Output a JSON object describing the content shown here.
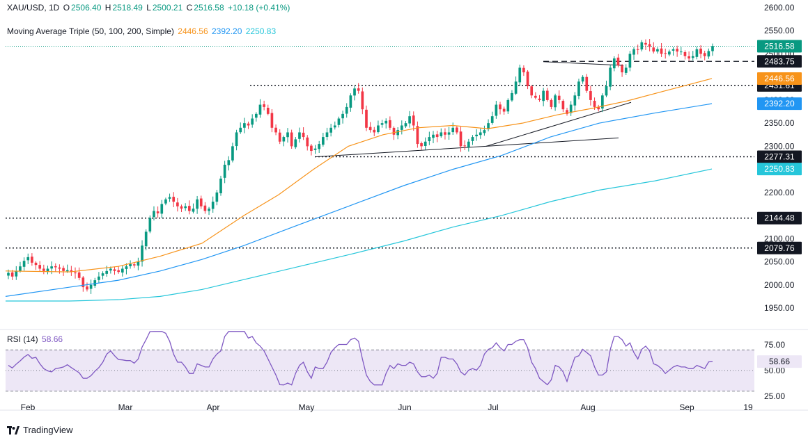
{
  "header": {
    "symbol": "XAU/USD, 1D",
    "o_label": "O",
    "o_value": "2506.40",
    "h_label": "H",
    "h_value": "2518.49",
    "l_label": "L",
    "l_value": "2500.21",
    "c_label": "C",
    "c_value": "2516.58",
    "change": "+10.18 (+0.41%)",
    "ma_title": "Moving Average Triple (50, 100, 200, Simple)",
    "ma50_value": "2446.56",
    "ma100_value": "2392.20",
    "ma200_value": "2250.83"
  },
  "rsi_header": {
    "label": "RSI (14)",
    "value": "58.66"
  },
  "branding": {
    "name": "TradingView"
  },
  "colors": {
    "up": "#089981",
    "down": "#f23645",
    "ma50": "#f7931a",
    "ma100": "#2196f3",
    "ma200": "#26c6da",
    "rsi": "#7e57c2",
    "rsi_band": "#ede7f6"
  },
  "chart_data": [
    {
      "type": "candlestick",
      "symbol": "XAU/USD",
      "timeframe": "1D",
      "y_range": [
        1925,
        2610
      ],
      "y_ticks": [
        "2600.00",
        "2550.00",
        "2500.00",
        "2450.00",
        "2400.00",
        "2350.00",
        "2300.00",
        "2250.00",
        "2200.00",
        "2150.00",
        "2100.00",
        "2050.00",
        "2000.00",
        "1950.00"
      ],
      "x_ticks": [
        "Feb",
        "Mar",
        "Apr",
        "May",
        "Jun",
        "Jul",
        "Aug",
        "Sep",
        "19"
      ],
      "candles": {
        "closes": [
          2026,
          2018,
          2030,
          2040,
          2052,
          2060,
          2048,
          2043,
          2035,
          2030,
          2035,
          2040,
          2038,
          2035,
          2030,
          2032,
          2028,
          2025,
          2015,
          1995,
          1990,
          2000,
          2010,
          2018,
          2025,
          2030,
          2035,
          2030,
          2028,
          2035,
          2040,
          2045,
          2042,
          2050,
          2085,
          2115,
          2145,
          2160,
          2155,
          2175,
          2185,
          2190,
          2180,
          2170,
          2165,
          2170,
          2160,
          2165,
          2185,
          2170,
          2160,
          2165,
          2180,
          2200,
          2230,
          2260,
          2270,
          2300,
          2330,
          2340,
          2350,
          2345,
          2360,
          2370,
          2390,
          2385,
          2370,
          2340,
          2330,
          2310,
          2320,
          2330,
          2300,
          2315,
          2330,
          2320,
          2300,
          2290,
          2295,
          2305,
          2320,
          2330,
          2340,
          2345,
          2360,
          2370,
          2385,
          2410,
          2425,
          2420,
          2380,
          2340,
          2335,
          2330,
          2345,
          2350,
          2355,
          2340,
          2325,
          2335,
          2345,
          2350,
          2365,
          2345,
          2305,
          2300,
          2310,
          2320,
          2325,
          2320,
          2330,
          2325,
          2330,
          2340,
          2330,
          2300,
          2300,
          2310,
          2320,
          2325,
          2330,
          2335,
          2350,
          2365,
          2390,
          2380,
          2375,
          2400,
          2415,
          2440,
          2470,
          2460,
          2430,
          2410,
          2405,
          2400,
          2420,
          2400,
          2385,
          2410,
          2400,
          2380,
          2370,
          2390,
          2410,
          2440,
          2450,
          2420,
          2400,
          2385,
          2380,
          2410,
          2430,
          2470,
          2490,
          2475,
          2460,
          2470,
          2500,
          2510,
          2510,
          2525,
          2520,
          2515,
          2505,
          2510,
          2500,
          2500,
          2505,
          2510,
          2505,
          2505,
          2495,
          2490,
          2495,
          2510,
          2500,
          2495,
          2506,
          2517
        ],
        "last_close": "2516.58"
      },
      "series": [
        {
          "name": "50",
          "last_value": "2446.56"
        },
        {
          "name": "100",
          "last_value": "2392.20"
        },
        {
          "name": "200",
          "last_value": "2250.83"
        }
      ],
      "levels": [
        {
          "value": "2483.75",
          "style": "dashed"
        },
        {
          "value": "2431.61",
          "style": "dotted"
        },
        {
          "value": "2277.31",
          "style": "dotted"
        },
        {
          "value": "2144.48",
          "style": "dotted"
        },
        {
          "value": "2079.76",
          "style": "dotted"
        }
      ]
    },
    {
      "type": "line",
      "y_range": [
        22,
        85
      ],
      "y_ticks": [
        "75.00",
        "50.00",
        "25.00"
      ],
      "x_ticks": [
        "Feb",
        "Mar",
        "Apr",
        "May",
        "Jun",
        "Jul",
        "Aug",
        "Sep",
        "19"
      ],
      "band": [
        30,
        70
      ],
      "series": [
        {
          "name": "RSI (14)",
          "last_value": "58.66"
        }
      ]
    }
  ]
}
